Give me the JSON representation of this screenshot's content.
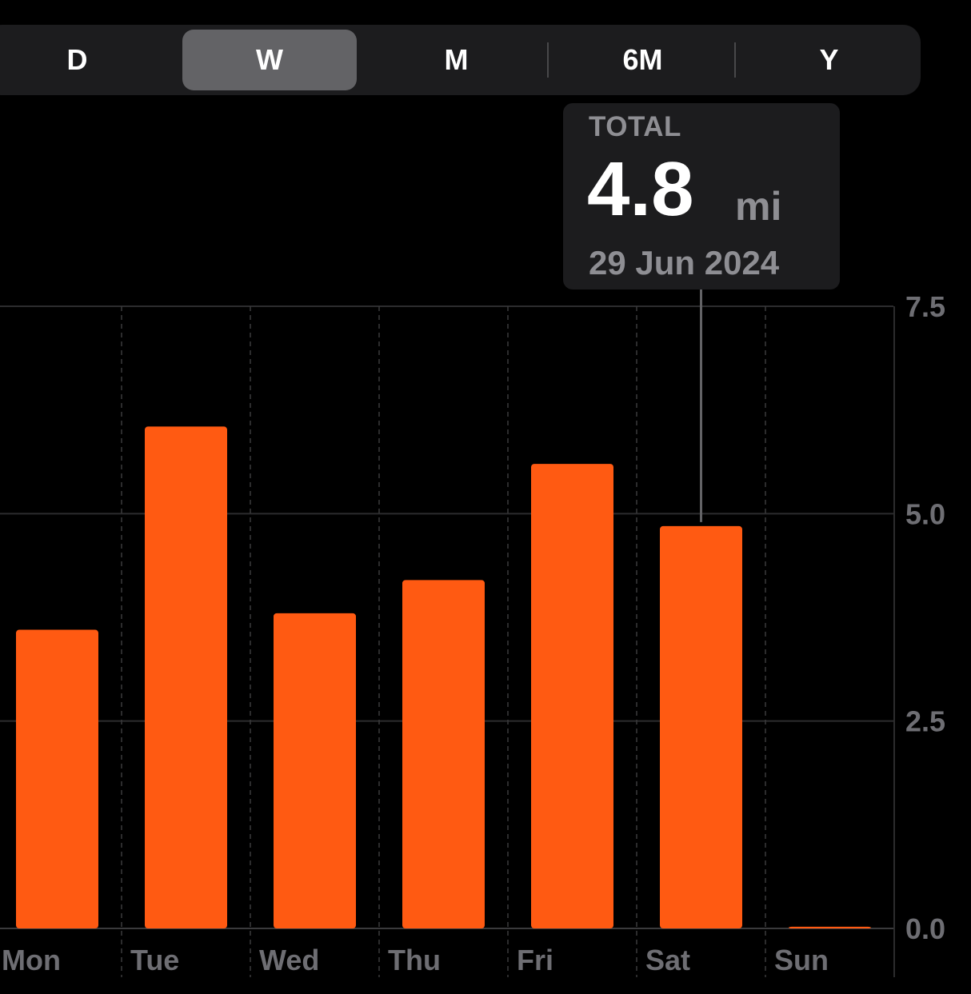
{
  "segmented_control": {
    "options": [
      "D",
      "W",
      "M",
      "6M",
      "Y"
    ],
    "selected": "W"
  },
  "tooltip": {
    "label": "TOTAL",
    "value": "4.8",
    "unit": "mi",
    "date": "29 Jun 2024"
  },
  "colors": {
    "bar": "#ff5a12",
    "background": "#000000",
    "control_bg": "#1c1c1e",
    "control_selected": "#636366",
    "axis_text": "#6e6e73"
  },
  "chart_data": {
    "type": "bar",
    "categories": [
      "Mon",
      "Tue",
      "Wed",
      "Thu",
      "Fri",
      "Sat",
      "Sun"
    ],
    "values": [
      3.6,
      6.05,
      3.8,
      4.2,
      5.6,
      4.85,
      0.02
    ],
    "unit": "mi",
    "ylim": [
      0,
      7.5
    ],
    "yticks": [
      "0.0",
      "2.5",
      "5.0",
      "7.5"
    ],
    "ytick_values": [
      0,
      2.5,
      5.0,
      7.5
    ],
    "highlighted_category": "Sat",
    "grid": true,
    "y_axis_position": "right"
  }
}
